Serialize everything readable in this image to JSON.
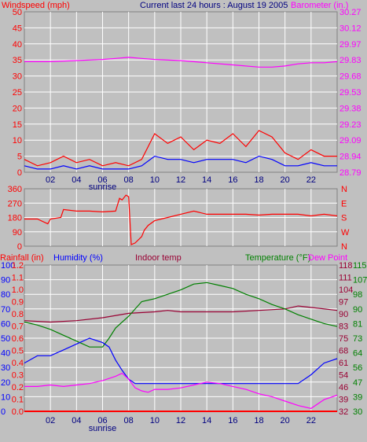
{
  "title": "Current last 24 hours : August 19 2005",
  "colors": {
    "background": "#c0c0c0",
    "grid": "#ffffff",
    "wind": "#ff0000",
    "gust": "#ff0000",
    "avg_wind": "#0000ff",
    "barometer": "#ff00ff",
    "direction": "#ff0000",
    "humidity": "#0000ff",
    "indoor": "#990033",
    "temperature": "#008000",
    "dewpoint": "#ff00ff",
    "rain": "#ff0000",
    "hours": "#000080"
  },
  "x_hours": [
    "02",
    "04",
    "06",
    "08",
    "10",
    "12",
    "14",
    "16",
    "18",
    "20",
    "22"
  ],
  "sunrise_label": "sunrise",
  "chart_data": [
    {
      "type": "line",
      "name": "wind-and-barometer",
      "labels": {
        "left": "Windspeed (mph)",
        "right": "Barometer (in.)"
      },
      "y_left_ticks": [
        "0",
        "2.5",
        "5",
        "7.5",
        "10",
        "12.5",
        "15",
        "17.5",
        "20",
        "22.5",
        "25"
      ],
      "y_left_labels": [
        "0",
        "5",
        "10",
        "15",
        "20",
        "25",
        "30",
        "35",
        "40",
        "45",
        "50"
      ],
      "y_right_ticks": [
        "28.79",
        "28.94",
        "29.09",
        "29.23",
        "29.38",
        "29.53",
        "29.68",
        "29.83",
        "29.97",
        "30.12",
        "30.27"
      ],
      "ylim_left": [
        0,
        50
      ],
      "ylim_right": [
        28.79,
        30.27
      ],
      "series": [
        {
          "key": "gust",
          "x": [
            0,
            1,
            2,
            3,
            4,
            5,
            6,
            7,
            8,
            9,
            10,
            11,
            12,
            13,
            14,
            15,
            16,
            17,
            18,
            19,
            20,
            21,
            22,
            23,
            24
          ],
          "values": [
            4,
            2,
            3,
            5,
            3,
            4,
            2,
            3,
            2,
            4,
            12,
            9,
            11,
            7,
            10,
            9,
            12,
            8,
            13,
            11,
            6,
            4,
            7,
            5,
            5
          ]
        },
        {
          "key": "avg_wind",
          "x": [
            0,
            1,
            2,
            3,
            4,
            5,
            6,
            7,
            8,
            9,
            10,
            11,
            12,
            13,
            14,
            15,
            16,
            17,
            18,
            19,
            20,
            21,
            22,
            23,
            24
          ],
          "values": [
            2,
            1,
            1,
            2,
            1,
            2,
            1,
            1,
            1,
            2,
            5,
            4,
            4,
            3,
            4,
            4,
            4,
            3,
            5,
            4,
            2,
            2,
            3,
            2,
            2
          ]
        },
        {
          "key": "barometer",
          "x": [
            0,
            2,
            4,
            6,
            7,
            8,
            9,
            10,
            12,
            14,
            16,
            18,
            19,
            20,
            21,
            22,
            23,
            24
          ],
          "values": [
            29.81,
            29.81,
            29.82,
            29.83,
            29.84,
            29.85,
            29.84,
            29.83,
            29.82,
            29.8,
            29.78,
            29.76,
            29.76,
            29.77,
            29.79,
            29.8,
            29.8,
            29.81
          ]
        }
      ]
    },
    {
      "type": "line",
      "name": "wind-direction",
      "y_left_ticks": [
        "0",
        "90",
        "180",
        "270",
        "360"
      ],
      "y_right_ticks": [
        "N",
        "W",
        "S",
        "E",
        "N"
      ],
      "ylim": [
        0,
        360
      ],
      "series": [
        {
          "key": "direction",
          "x": [
            0,
            1,
            1.8,
            2,
            2.8,
            3,
            4,
            5,
            6,
            7,
            7.3,
            7.5,
            7.8,
            8,
            8.2,
            8.5,
            9,
            9.2,
            9.5,
            10,
            11,
            12,
            13,
            14,
            15,
            16,
            17,
            18,
            19,
            20,
            21,
            22,
            23,
            24
          ],
          "values": [
            170,
            170,
            140,
            170,
            180,
            230,
            220,
            220,
            215,
            220,
            300,
            290,
            320,
            310,
            10,
            20,
            60,
            100,
            130,
            160,
            180,
            200,
            220,
            200,
            200,
            200,
            200,
            195,
            200,
            200,
            200,
            190,
            200,
            190
          ]
        }
      ]
    },
    {
      "type": "line",
      "name": "climate",
      "labels": {
        "rain": "Rainfall (in)",
        "humidity": "Humidity (%)",
        "indoor": "Indoor temp",
        "temperature": "Temperature (°F)",
        "dewpoint": "Dew Point"
      },
      "rain_ticks": [
        "0.0",
        "0.1",
        "0.2",
        "0.3",
        "0.4",
        "0.5",
        "0.6",
        "0.7",
        "0.8",
        "0.9",
        "1.0",
        "1.1",
        "1.2"
      ],
      "humidity_ticks": [
        "0",
        "10",
        "20",
        "30",
        "40",
        "50",
        "60",
        "70",
        "80",
        "90",
        "100"
      ],
      "temp_ticks_a": [
        "32",
        "39",
        "46",
        "54",
        "61",
        "68",
        "75",
        "83",
        "90",
        "97",
        "104",
        "111",
        "118"
      ],
      "temp_ticks_b": [
        "30",
        "39",
        "47",
        "56",
        "64",
        "73",
        "81",
        "90",
        "98",
        "107",
        "115"
      ],
      "ylim_humidity": [
        0,
        100
      ],
      "series": [
        {
          "key": "humidity",
          "x": [
            0,
            1,
            2,
            3,
            4,
            5,
            6,
            6.5,
            7,
            7.5,
            8,
            8.5,
            9,
            10,
            11,
            12,
            13,
            14,
            15,
            16,
            17,
            18,
            19,
            20,
            21,
            22,
            23,
            24
          ],
          "values": [
            33,
            38,
            38,
            42,
            46,
            50,
            47,
            44,
            35,
            28,
            22,
            19,
            19,
            19,
            19,
            19,
            19,
            19,
            19,
            19,
            19,
            19,
            19,
            19,
            19,
            25,
            33,
            36
          ]
        },
        {
          "key": "indoor",
          "x": [
            0,
            2,
            4,
            6,
            8,
            10,
            11,
            12,
            14,
            16,
            18,
            20,
            21,
            22,
            24
          ],
          "values": [
            62,
            61,
            62,
            64,
            67,
            68,
            69,
            68,
            68,
            68,
            69,
            70,
            72,
            71,
            69
          ]
        },
        {
          "key": "temperature",
          "x": [
            0,
            1,
            2,
            3,
            4,
            5,
            6,
            6.5,
            7,
            8,
            9,
            10,
            11,
            12,
            13,
            14,
            15,
            16,
            17,
            18,
            19,
            20,
            21,
            22,
            23,
            24
          ],
          "values": [
            61,
            59,
            56,
            52,
            48,
            44,
            44,
            50,
            57,
            65,
            75,
            77,
            80,
            83,
            87,
            88,
            86,
            84,
            80,
            77,
            73,
            70,
            66,
            63,
            60,
            58
          ]
        },
        {
          "key": "dewpoint",
          "x": [
            0,
            1,
            2,
            3,
            4,
            5,
            6,
            7,
            7.5,
            8,
            8.5,
            9,
            9.5,
            10,
            11,
            12,
            13,
            14,
            15,
            16,
            17,
            18,
            19,
            20,
            21,
            22,
            23,
            24
          ],
          "values": [
            17,
            17,
            18,
            17,
            18,
            19,
            21,
            24,
            26,
            22,
            16,
            14,
            13,
            15,
            15,
            16,
            18,
            20,
            19,
            17,
            15,
            12,
            10,
            7,
            4,
            2,
            8,
            11
          ]
        },
        {
          "key": "rain",
          "x": [
            0,
            24
          ],
          "values": [
            0,
            0
          ]
        }
      ]
    }
  ]
}
